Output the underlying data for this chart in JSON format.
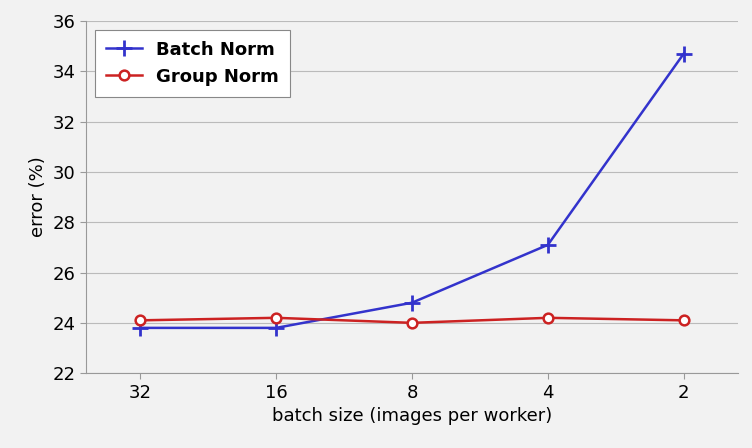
{
  "x_values": [
    32,
    16,
    8,
    4,
    2
  ],
  "batch_norm_y": [
    23.8,
    23.8,
    24.8,
    27.1,
    34.7
  ],
  "group_norm_y": [
    24.1,
    24.2,
    24.0,
    24.2,
    24.1
  ],
  "batch_norm_color": "#3333cc",
  "group_norm_color": "#cc2222",
  "xlabel": "batch size (images per worker)",
  "ylabel": "error (%)",
  "ylim": [
    22,
    36
  ],
  "yticks": [
    22,
    24,
    26,
    28,
    30,
    32,
    34,
    36
  ],
  "xtick_labels": [
    "32",
    "16",
    "8",
    "4",
    "2"
  ],
  "legend_batch_norm": "Batch Norm",
  "legend_group_norm": "Group Norm",
  "background_color": "#f2f2f2",
  "plot_bg_color": "#f2f2f2",
  "grid_color": "#bbbbbb",
  "spine_color": "#999999"
}
